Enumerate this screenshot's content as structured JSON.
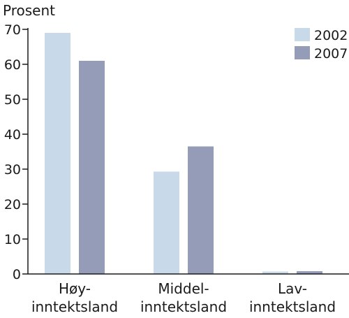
{
  "chart_data": {
    "type": "bar",
    "ylabel": "Prosent",
    "ylim": [
      0,
      70
    ],
    "yticks": [
      0,
      10,
      20,
      30,
      40,
      50,
      60,
      70
    ],
    "categories": [
      [
        "Høy-",
        "inntektsland"
      ],
      [
        "Middel-",
        "inntektsland"
      ],
      [
        "Lav-",
        "inntektsland"
      ]
    ],
    "series": [
      {
        "name": "2002",
        "color": "#c8daea",
        "values": [
          69,
          29.3,
          0.7
        ]
      },
      {
        "name": "2007",
        "color": "#959cb7",
        "values": [
          61,
          36.5,
          0.8
        ]
      }
    ],
    "legend_position": "top-right",
    "grid": false
  }
}
